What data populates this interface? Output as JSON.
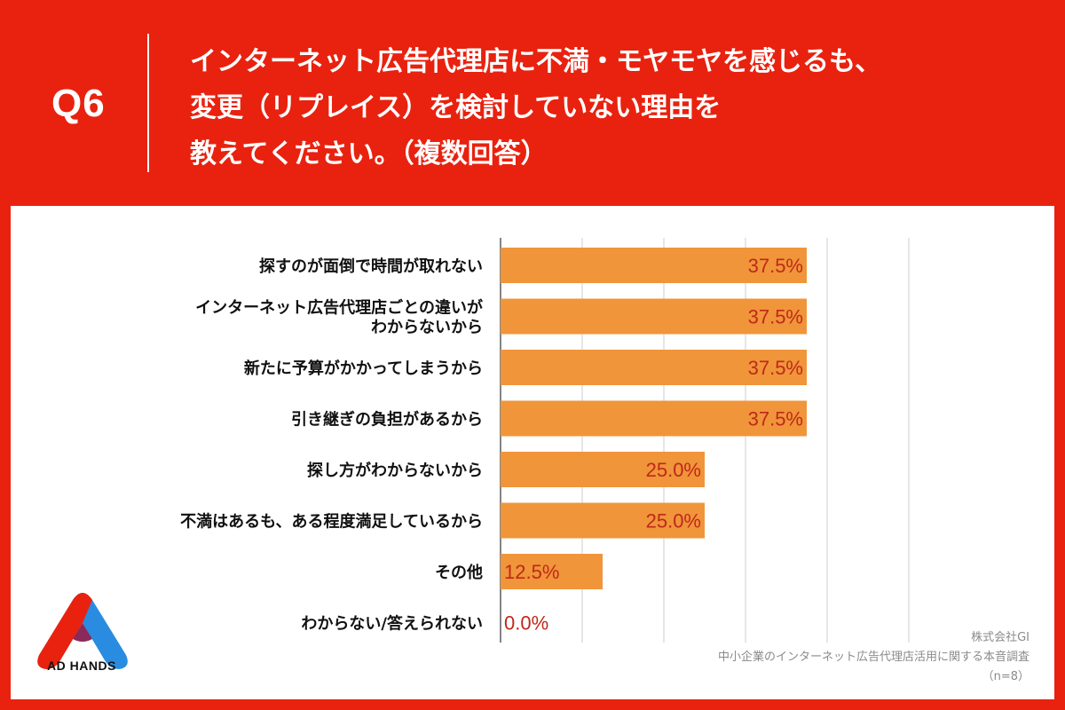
{
  "header": {
    "q_label": "Q6",
    "question_lines": [
      "インターネット広告代理店に不満・モヤモヤを感じるも、",
      "変更（リプレイス）を検討していない理由を",
      "教えてください。（複数回答）"
    ]
  },
  "chart_data": {
    "type": "bar",
    "orientation": "horizontal",
    "categories": [
      [
        "探すのが面倒で時間が取れない"
      ],
      [
        "インターネット広告代理店ごとの違いが",
        "わからないから"
      ],
      [
        "新たに予算がかかってしまうから"
      ],
      [
        "引き継ぎの負担があるから"
      ],
      [
        "探し方がわからないから"
      ],
      [
        "不満はあるも、ある程度満足しているから"
      ],
      [
        "その他"
      ],
      [
        "わからない/答えられない"
      ]
    ],
    "values": [
      37.5,
      37.5,
      37.5,
      37.5,
      25.0,
      25.0,
      12.5,
      0.0
    ],
    "value_labels": [
      "37.5%",
      "37.5%",
      "37.5%",
      "37.5%",
      "25.0%",
      "25.0%",
      "12.5%",
      "0.0%"
    ],
    "xlim": [
      0,
      50
    ],
    "grid": true,
    "bar_color": "#f0953a",
    "label_color": "#c0281a"
  },
  "logo": {
    "text": "AD HANDS"
  },
  "source": {
    "lines": [
      "株式会社GI",
      "中小企業のインターネット広告代理店活用に関する本音調査",
      "（n=8）"
    ]
  },
  "colors": {
    "accent": "#e8220f",
    "bar": "#f0953a",
    "value_text": "#c0281a"
  }
}
